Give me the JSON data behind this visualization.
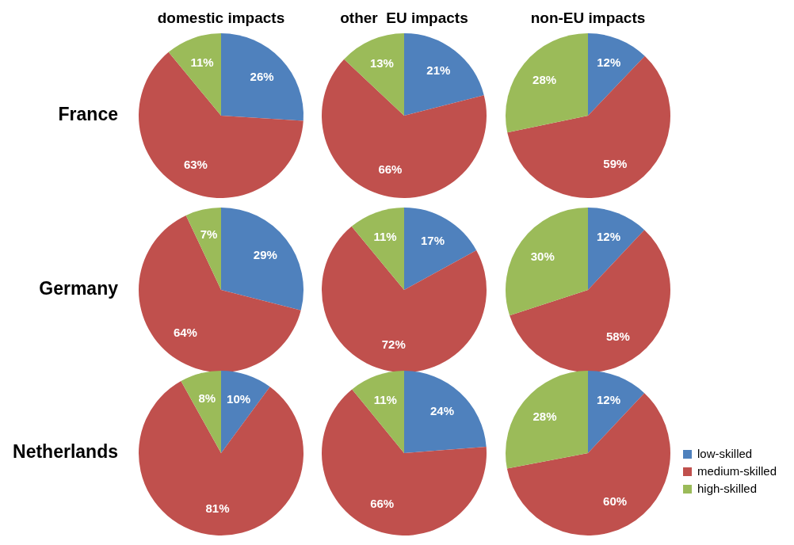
{
  "chart_data": [
    {
      "type": "pie",
      "title": "domestic impacts",
      "ylabel": "France",
      "categories": [
        null,
        null,
        null
      ],
      "values": [
        26,
        63,
        11
      ],
      "value_labels": [
        "26%",
        "63%",
        "11%"
      ],
      "colors": [
        "#4f81bd",
        "#c0504d",
        "#9bbb59"
      ]
    },
    {
      "type": "pie",
      "title": "other  EU impacts",
      "categories": [
        null,
        null,
        null
      ],
      "values": [
        21,
        66,
        13
      ],
      "value_labels": [
        "21%",
        "66%",
        "13%"
      ],
      "colors": [
        "#4f81bd",
        "#c0504d",
        "#9bbb59"
      ]
    },
    {
      "type": "pie",
      "title": "non-EU impacts",
      "categories": [
        null,
        null,
        null
      ],
      "values": [
        12,
        59,
        28
      ],
      "value_labels": [
        "12%",
        "59%",
        "28%"
      ],
      "colors": [
        "#4f81bd",
        "#c0504d",
        "#9bbb59"
      ]
    },
    {
      "type": "pie",
      "ylabel": "Germany",
      "categories": [
        null,
        null,
        null
      ],
      "values": [
        29,
        64,
        7
      ],
      "value_labels": [
        "29%",
        "64%",
        "7%"
      ],
      "colors": [
        "#4f81bd",
        "#c0504d",
        "#9bbb59"
      ]
    },
    {
      "type": "pie",
      "categories": [
        null,
        null,
        null
      ],
      "values": [
        17,
        72,
        11
      ],
      "value_labels": [
        "17%",
        "72%",
        "11%"
      ],
      "colors": [
        "#4f81bd",
        "#c0504d",
        "#9bbb59"
      ]
    },
    {
      "type": "pie",
      "categories": [
        null,
        null,
        null
      ],
      "values": [
        12,
        58,
        30
      ],
      "value_labels": [
        "12%",
        "58%",
        "30%"
      ],
      "colors": [
        "#4f81bd",
        "#c0504d",
        "#9bbb59"
      ]
    },
    {
      "type": "pie",
      "ylabel": "Netherlands",
      "categories": [
        null,
        null,
        null
      ],
      "values": [
        10,
        81,
        8
      ],
      "value_labels": [
        "10%",
        "81%",
        "8%"
      ],
      "colors": [
        "#4f81bd",
        "#c0504d",
        "#9bbb59"
      ]
    },
    {
      "type": "pie",
      "categories": [
        null,
        null,
        null
      ],
      "values": [
        24,
        66,
        11
      ],
      "value_labels": [
        "24%",
        "66%",
        "11%"
      ],
      "colors": [
        "#4f81bd",
        "#c0504d",
        "#9bbb59"
      ]
    },
    {
      "type": "pie",
      "categories": [
        "low-skilled",
        "medium-skilled",
        "high-skilled"
      ],
      "values": [
        12,
        60,
        28
      ],
      "value_labels": [
        "12%",
        "60%",
        "28%"
      ],
      "colors": [
        "#4f81bd",
        "#c0504d",
        "#9bbb59"
      ],
      "legend": "bottom right"
    }
  ]
}
